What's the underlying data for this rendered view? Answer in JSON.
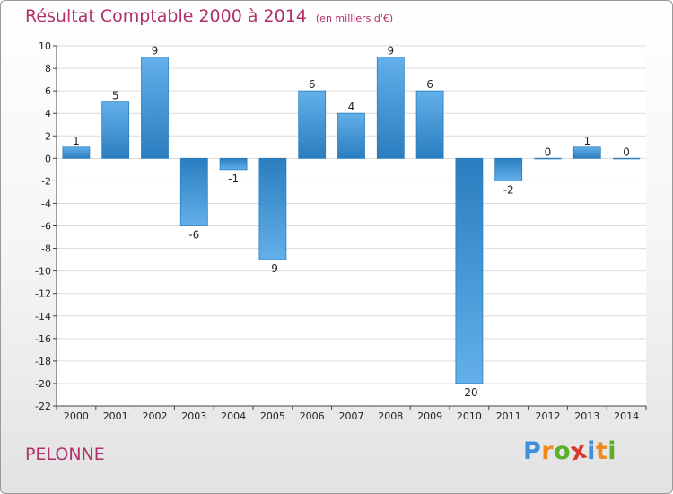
{
  "header": {
    "title": "Résultat Comptable 2000 à 2014",
    "subtitle": "(en milliers d'€)"
  },
  "footer": {
    "commune": "PELONNE",
    "logo_text": "Proxiti",
    "logo_letters": [
      {
        "char": "P",
        "color": "#3c8fd8"
      },
      {
        "char": "r",
        "color": "#f08a1c"
      },
      {
        "char": "o",
        "color": "#5cb02c"
      },
      {
        "char": "x",
        "color": "#d93a2e"
      },
      {
        "char": "i",
        "color": "#3c8fd8"
      },
      {
        "char": "t",
        "color": "#f08a1c"
      },
      {
        "char": "i",
        "color": "#5cb02c"
      }
    ]
  },
  "colors": {
    "title": "#b0306a",
    "bar_light": "#63b0ea",
    "bar_dark": "#2a7dbf",
    "grid": "#dcdcdc"
  },
  "chart_data": {
    "type": "bar",
    "title": "Résultat Comptable 2000 à 2014",
    "subtitle": "(en milliers d'€)",
    "xlabel": "",
    "ylabel": "",
    "categories": [
      "2000",
      "2001",
      "2002",
      "2003",
      "2004",
      "2005",
      "2006",
      "2007",
      "2008",
      "2009",
      "2010",
      "2011",
      "2012",
      "2013",
      "2014"
    ],
    "values": [
      1,
      5,
      9,
      -6,
      -1,
      -9,
      6,
      4,
      9,
      6,
      -20,
      -2,
      0,
      1,
      0
    ],
    "value_labels": [
      "1",
      "5",
      "9",
      "-6",
      "-1",
      "-9",
      "6",
      "4",
      "9",
      "6",
      "-20",
      "-2",
      "0",
      "1",
      "0"
    ],
    "ylim": [
      -22,
      10
    ],
    "yticks": [
      10,
      8,
      6,
      4,
      2,
      0,
      -2,
      -4,
      -6,
      -8,
      -10,
      -12,
      -14,
      -16,
      -18,
      -20,
      -22
    ],
    "ytick_labels": [
      "10",
      "8",
      "6",
      "4",
      "2",
      "0",
      "-2",
      "-4",
      "-6",
      "-8",
      "-10",
      "-12",
      "-14",
      "-16",
      "-18",
      "-20",
      "-22"
    ],
    "grid": true,
    "legend": "none"
  }
}
